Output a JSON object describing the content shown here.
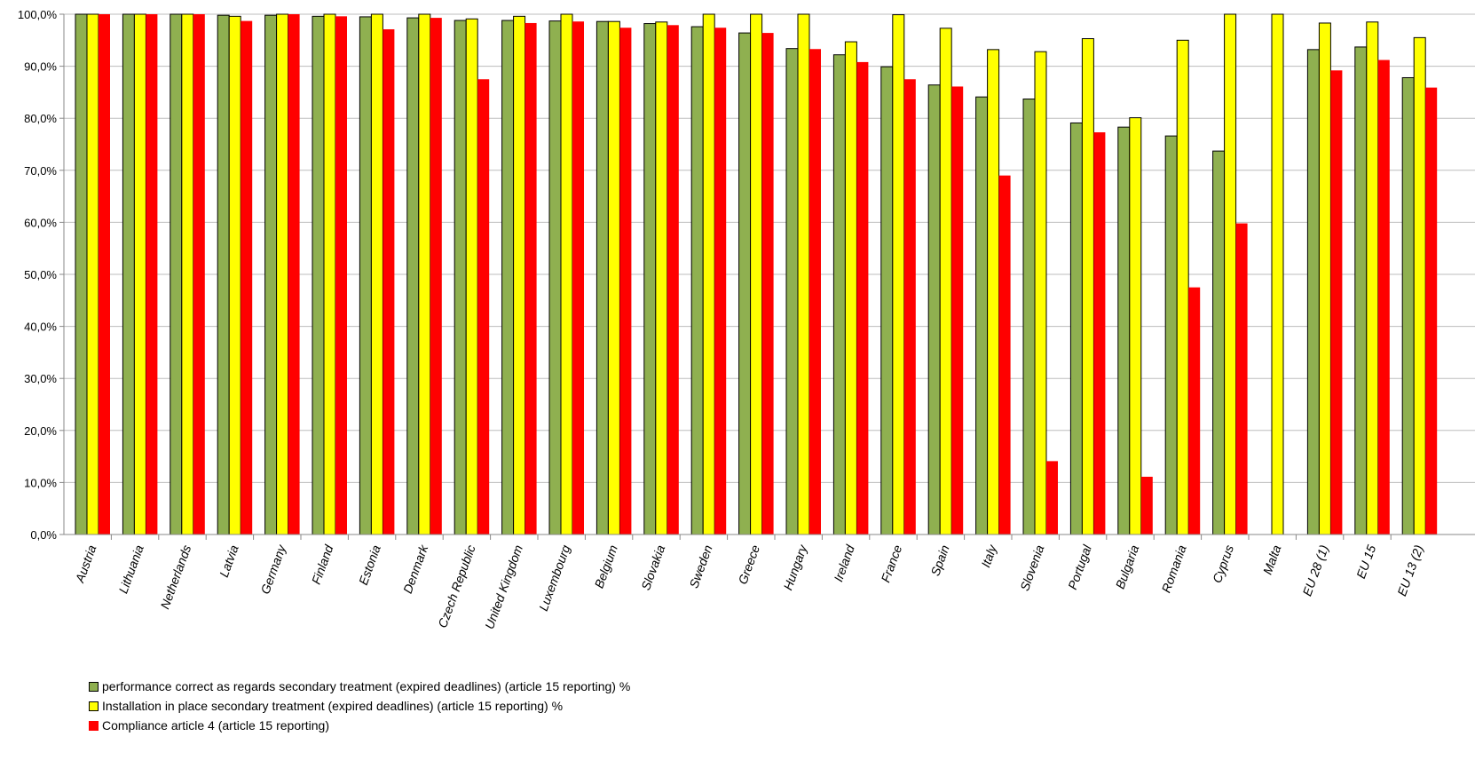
{
  "chart_data": {
    "type": "bar",
    "categories": [
      "Austria",
      "Lithuania",
      "Netherlands",
      "Latvia",
      "Germany",
      "Finland",
      "Estonia",
      "Denmark",
      "Czech Republic",
      "United Kingdom",
      "Luxembourg",
      "Belgium",
      "Slovakia",
      "Sweden",
      "Greece",
      "Hungary",
      "Ireland",
      "France",
      "Spain",
      "Italy",
      "Slovenia",
      "Portugal",
      "Bulgaria",
      "Romania",
      "Cyprus",
      "Malta",
      "EU 28 (1)",
      "EU 15",
      "EU 13 (2)"
    ],
    "series": [
      {
        "name": "performance correct as regards secondary treatment (expired deadlines) (article 15 reporting) %",
        "color": "#8fb050",
        "values": [
          100,
          100,
          100,
          99.8,
          99.8,
          99.6,
          99.5,
          99.3,
          98.8,
          98.8,
          98.7,
          98.6,
          98.2,
          97.6,
          96.4,
          93.4,
          92.2,
          89.9,
          86.4,
          84.1,
          83.7,
          79.1,
          78.3,
          76.6,
          73.7,
          null,
          93.2,
          93.7,
          87.8
        ]
      },
      {
        "name": "Installation in place secondary treatment (expired deadlines) (article 15 reporting) %",
        "color": "#ffff00",
        "values": [
          100,
          100,
          100,
          99.6,
          100,
          100,
          100,
          100,
          99.1,
          99.6,
          100,
          98.6,
          98.5,
          100,
          100,
          100,
          94.7,
          99.9,
          97.3,
          93.2,
          92.8,
          95.3,
          80.1,
          95.0,
          100,
          100,
          98.3,
          98.5,
          95.5
        ]
      },
      {
        "name": "Compliance article 4 (article 15 reporting)",
        "color": "#ff0000",
        "values": [
          100,
          100,
          100,
          98.7,
          100,
          99.6,
          97.1,
          99.3,
          87.5,
          98.3,
          98.6,
          97.4,
          97.9,
          97.4,
          96.4,
          93.3,
          90.8,
          87.5,
          86.1,
          69.0,
          14.1,
          77.3,
          11.1,
          47.5,
          59.8,
          null,
          89.2,
          91.2,
          85.9
        ]
      }
    ],
    "ylim": [
      0,
      100
    ],
    "yticks": [
      "0,0%",
      "10,0%",
      "20,0%",
      "30,0%",
      "40,0%",
      "50,0%",
      "60,0%",
      "70,0%",
      "80,0%",
      "90,0%",
      "100,0%"
    ],
    "grid": true,
    "legend_position": "bottom-left"
  }
}
